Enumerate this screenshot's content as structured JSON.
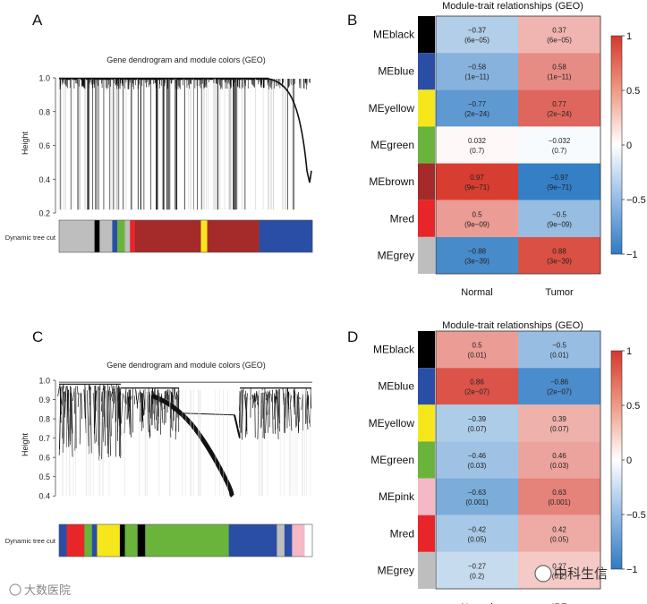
{
  "panels": {
    "A": {
      "letter": "A",
      "title": "Gene dendrogram and module colors (GEO)",
      "ylabel": "Height",
      "yticks": [
        "1.0",
        "0.8",
        "0.6",
        "0.4",
        "0.2"
      ],
      "ytick_values": [
        1.0,
        0.8,
        0.6,
        0.4,
        0.2
      ],
      "ylim": [
        0.2,
        1.0
      ],
      "strip_label": "Dynamic tree cut"
    },
    "B": {
      "letter": "B",
      "title": "Module-trait relationships (GEO)",
      "columns": [
        "Normal",
        "Tumor"
      ],
      "legend_ticks": [
        "1",
        "0.5",
        "0",
        "−0.5",
        "−1"
      ],
      "legend_values": [
        1,
        0.5,
        0,
        -0.5,
        -1
      ]
    },
    "C": {
      "letter": "C",
      "title": "Gene dendrogram and module colors (GEO)",
      "ylabel": "Height",
      "yticks": [
        "1.0",
        "0.9",
        "0.8",
        "0.7",
        "0.6",
        "0.5",
        "0.4"
      ],
      "ytick_values": [
        1.0,
        0.9,
        0.8,
        0.7,
        0.6,
        0.5,
        0.4
      ],
      "ylim": [
        0.35,
        1.0
      ],
      "strip_label": "Dynamic tree cut"
    },
    "D": {
      "letter": "D",
      "title": "Module-trait relationships (GEO)",
      "columns": [
        "Normal",
        "IPF"
      ],
      "legend_ticks": [
        "1",
        "0.5",
        "0",
        "−0.5",
        "−1"
      ],
      "legend_values": [
        1,
        0.5,
        0,
        -0.5,
        -1
      ]
    }
  },
  "chart_data": [
    {
      "type": "heatmap",
      "panel": "B",
      "title": "Module-trait relationships (GEO)",
      "columns": [
        "Normal",
        "Tumor"
      ],
      "rows": [
        {
          "module": "MEblack",
          "color": "#000000",
          "values": [
            -0.37,
            0.37
          ],
          "labels": [
            "−0.37",
            "0.37"
          ],
          "pvalues": [
            "(6e−05)",
            "(6e−05)"
          ]
        },
        {
          "module": "MEblue",
          "color": "#2a4ea6",
          "values": [
            -0.58,
            0.58
          ],
          "labels": [
            "−0.58",
            "0.58"
          ],
          "pvalues": [
            "(1e−11)",
            "(1e−11)"
          ]
        },
        {
          "module": "MEyellow",
          "color": "#f5e71c",
          "values": [
            -0.77,
            0.77
          ],
          "labels": [
            "−0.77",
            "0.77"
          ],
          "pvalues": [
            "(2e−24)",
            "(2e−24)"
          ]
        },
        {
          "module": "MEgreen",
          "color": "#6ab43c",
          "values": [
            0.032,
            -0.032
          ],
          "labels": [
            "0.032",
            "−0.032"
          ],
          "pvalues": [
            "(0.7)",
            "(0.7)"
          ]
        },
        {
          "module": "MEbrown",
          "color": "#a52a2a",
          "values": [
            0.97,
            -0.97
          ],
          "labels": [
            "0.97",
            "−0.97"
          ],
          "pvalues": [
            "(9e−71)",
            "(9e−71)"
          ]
        },
        {
          "module": "Mred",
          "color": "#e8262a",
          "values": [
            0.5,
            -0.5
          ],
          "labels": [
            "0.5",
            "−0.5"
          ],
          "pvalues": [
            "(9e−09)",
            "(9e−09)"
          ]
        },
        {
          "module": "MEgrey",
          "color": "#bebebe",
          "values": [
            -0.88,
            0.88
          ],
          "labels": [
            "−0.88",
            "0.88"
          ],
          "pvalues": [
            "(3e−39)",
            "(3e−39)"
          ]
        }
      ],
      "legend_range": [
        -1,
        1
      ]
    },
    {
      "type": "heatmap",
      "panel": "D",
      "title": "Module-trait relationships (GEO)",
      "columns": [
        "Normal",
        "IPF"
      ],
      "rows": [
        {
          "module": "MEblack",
          "color": "#000000",
          "values": [
            0.5,
            -0.5
          ],
          "labels": [
            "0.5",
            "−0.5"
          ],
          "pvalues": [
            "(0.01)",
            "(0.01)"
          ]
        },
        {
          "module": "MEblue",
          "color": "#2a4ea6",
          "values": [
            0.86,
            -0.86
          ],
          "labels": [
            "0.86",
            "−0.86"
          ],
          "pvalues": [
            "(2e−07)",
            "(2e−07)"
          ]
        },
        {
          "module": "MEyellow",
          "color": "#f5e71c",
          "values": [
            -0.39,
            0.39
          ],
          "labels": [
            "−0.39",
            "0.39"
          ],
          "pvalues": [
            "(0.07)",
            "(0.07)"
          ]
        },
        {
          "module": "MEgreen",
          "color": "#6ab43c",
          "values": [
            -0.46,
            0.46
          ],
          "labels": [
            "−0.46",
            "0.46"
          ],
          "pvalues": [
            "(0.03)",
            "(0.03)"
          ]
        },
        {
          "module": "MEpink",
          "color": "#f4b8c6",
          "values": [
            -0.63,
            0.63
          ],
          "labels": [
            "−0.63",
            "0.63"
          ],
          "pvalues": [
            "(0.001)",
            "(0.001)"
          ]
        },
        {
          "module": "Mred",
          "color": "#e8262a",
          "values": [
            -0.42,
            0.42
          ],
          "labels": [
            "−0.42",
            "0.42"
          ],
          "pvalues": [
            "(0.05)",
            "(0.05)"
          ]
        },
        {
          "module": "MEgrey",
          "color": "#bebebe",
          "values": [
            -0.27,
            0.27
          ],
          "labels": [
            "−0.27",
            "0.27"
          ],
          "pvalues": [
            "(0.2)",
            "(0.2)"
          ]
        }
      ],
      "legend_range": [
        -1,
        1
      ]
    },
    {
      "type": "dendrogram",
      "panel": "A",
      "title": "Gene dendrogram and module colors (GEO)",
      "ylabel": "Height",
      "ylim": [
        0.2,
        1.0
      ],
      "module_strip": [
        {
          "color": "#bebebe",
          "fraction": 0.14
        },
        {
          "color": "#000000",
          "fraction": 0.02
        },
        {
          "color": "#bebebe",
          "fraction": 0.05
        },
        {
          "color": "#2a4ea6",
          "fraction": 0.02
        },
        {
          "color": "#6ab43c",
          "fraction": 0.03
        },
        {
          "color": "#bebebe",
          "fraction": 0.02
        },
        {
          "color": "#e8262a",
          "fraction": 0.02
        },
        {
          "color": "#a52a2a",
          "fraction": 0.26
        },
        {
          "color": "#f5e71c",
          "fraction": 0.025
        },
        {
          "color": "#a52a2a",
          "fraction": 0.205
        },
        {
          "color": "#2a4ea6",
          "fraction": 0.21
        }
      ]
    },
    {
      "type": "dendrogram",
      "panel": "C",
      "title": "Gene dendrogram and module colors (GEO)",
      "ylabel": "Height",
      "ylim": [
        0.35,
        1.0
      ],
      "module_strip": [
        {
          "color": "#2a4ea6",
          "fraction": 0.03
        },
        {
          "color": "#e8262a",
          "fraction": 0.07
        },
        {
          "color": "#6ab43c",
          "fraction": 0.03
        },
        {
          "color": "#2a4ea6",
          "fraction": 0.02
        },
        {
          "color": "#f5e71c",
          "fraction": 0.09
        },
        {
          "color": "#000000",
          "fraction": 0.02
        },
        {
          "color": "#6ab43c",
          "fraction": 0.05
        },
        {
          "color": "#000000",
          "fraction": 0.03
        },
        {
          "color": "#6ab43c",
          "fraction": 0.33
        },
        {
          "color": "#2a4ea6",
          "fraction": 0.19
        },
        {
          "color": "#bebebe",
          "fraction": 0.03
        },
        {
          "color": "#2a4ea6",
          "fraction": 0.03
        },
        {
          "color": "#f4b8c6",
          "fraction": 0.05
        },
        {
          "color": "#ffffff",
          "fraction": 0.01
        }
      ]
    }
  ],
  "watermarks": {
    "left": "大数医院",
    "right": "中科生信"
  }
}
